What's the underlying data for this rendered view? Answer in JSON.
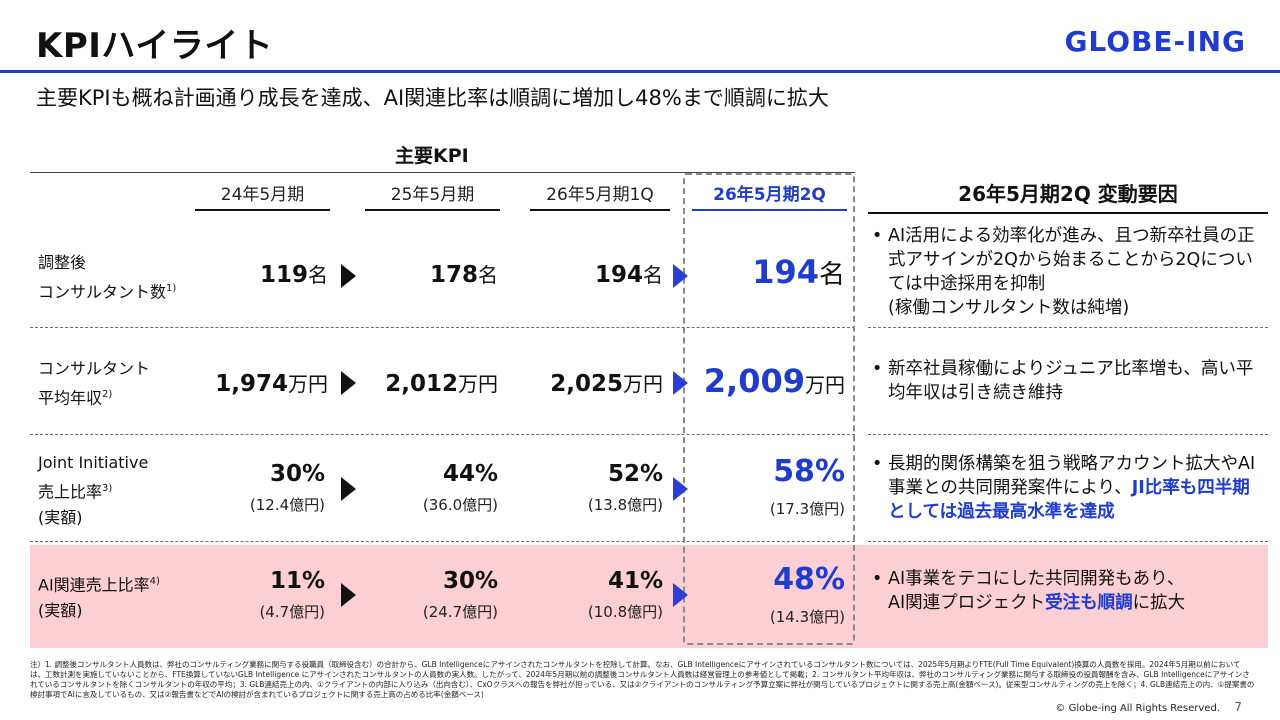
{
  "header": {
    "title": "KPIハイライト",
    "logo": "GLOBE-ING",
    "subtitle": "主要KPIも概ね計画通り成長を達成、AI関連比率は順調に増加し48%まで順調に拡大"
  },
  "table": {
    "group_header": "主要KPI",
    "columns": [
      "24年5月期",
      "25年5月期",
      "26年5月期1Q",
      "26年5月期2Q"
    ],
    "reason_header": "26年5月期2Q 変動要因",
    "rows": [
      {
        "label_line1": "調整後",
        "label_line2": "コンサルタント数",
        "label_sup": "1)",
        "values": [
          {
            "num": "119",
            "unit": "名"
          },
          {
            "num": "178",
            "unit": "名"
          },
          {
            "num": "194",
            "unit": "名"
          },
          {
            "num": "194",
            "unit": "名"
          }
        ],
        "reason": [
          {
            "text": "AI活用による効率化が進み、且つ新卒社員の正式アサインが2Qから始まることから2Qについては中途採用を抑制",
            "em": ""
          },
          {
            "text": "(稼働コンサルタント数は純増)",
            "em": ""
          }
        ]
      },
      {
        "label_line1": "コンサルタント",
        "label_line2": "平均年収",
        "label_sup": "2)",
        "values": [
          {
            "num": "1,974",
            "unit": "万円"
          },
          {
            "num": "2,012",
            "unit": "万円"
          },
          {
            "num": "2,025",
            "unit": "万円"
          },
          {
            "num": "2,009",
            "unit": "万円"
          }
        ],
        "reason_text": "新卒社員稼働によりジュニア比率増も、高い平均年収は引き続き維持"
      },
      {
        "label_line1": "Joint Initiative",
        "label_line2": "売上比率",
        "label_sup": "3)",
        "label_line3": "(実額)",
        "values": [
          {
            "num": "30",
            "unit": "%",
            "sub": "(12.4億円)"
          },
          {
            "num": "44",
            "unit": "%",
            "sub": "(36.0億円)"
          },
          {
            "num": "52",
            "unit": "%",
            "sub": "(13.8億円)"
          },
          {
            "num": "58",
            "unit": "%",
            "sub": "(17.3億円)"
          }
        ],
        "reason_plain": "長期的関係構築を狙う戦略アカウント拡大やAI事業との共同開発案件により、",
        "reason_em": "JI比率も四半期としては過去最高水準を達成"
      },
      {
        "label_line1": "AI関連売上比率",
        "label_sup": "4)",
        "label_line2": "(実額)",
        "values": [
          {
            "num": "11",
            "unit": "%",
            "sub": "(4.7億円)"
          },
          {
            "num": "30",
            "unit": "%",
            "sub": "(24.7億円)"
          },
          {
            "num": "41",
            "unit": "%",
            "sub": "(10.8億円)"
          },
          {
            "num": "48",
            "unit": "%",
            "sub": "(14.3億円)"
          }
        ],
        "reason_plain1": "AI事業をテコにした共同開発もあり、",
        "reason_plain2": "AI関連プロジェクト",
        "reason_em": "受注も順調",
        "reason_plain3": "に拡大"
      }
    ]
  },
  "footnote": "注）1. 調整後コンサルタント人員数は、弊社のコンサルティング業務に関与する役職員（取締役含む）の合計から、GLB Intelligenceにアサインされたコンサルタントを控除して計算。なお、GLB Intelligenceにアサインされているコンサルタント数については、2025年5月期よりFTE(Full Time Equivalent)換算の人員数を採用。2024年5月期以前においては、工数計測を実施していないことから、FTE換算していないGLB Intelligence にアサインされたコンサルタントの人員数の実人数。したがって、2024年5月期以前の調整後コンサルタント人員数は経営管理上の参考値として掲載；2. コンサルタント平均年収は、弊社のコンサルティング業務に関与する取締役の役員報酬を含み、GLB Intelligenceにアサインされているコンサルタントを除くコンサルタントの年収の平均；3. GLB連結売上の内、①クライアントの内部に入り込み（出向含む）、CxOクラスへの報告を弊社が担っている、又は②クライアントのコンサルティング予算立案に弊社が関与しているプロジェクトに関する売上高(金額ベース)。従来型コンサルティングの売上を除く；4. GLB連結売上の内、①提案書の検討事項でAIに言及しているもの、又は②報告書などでAIの検討が含まれているプロジェクトに関する売上高の占める比率(金額ベース)",
  "copyright": "© Globe-ing All Rights Reserved.",
  "page_number": "7",
  "colors": {
    "accent": "#1f3ccf",
    "pink_band": "#fbcfd4"
  }
}
